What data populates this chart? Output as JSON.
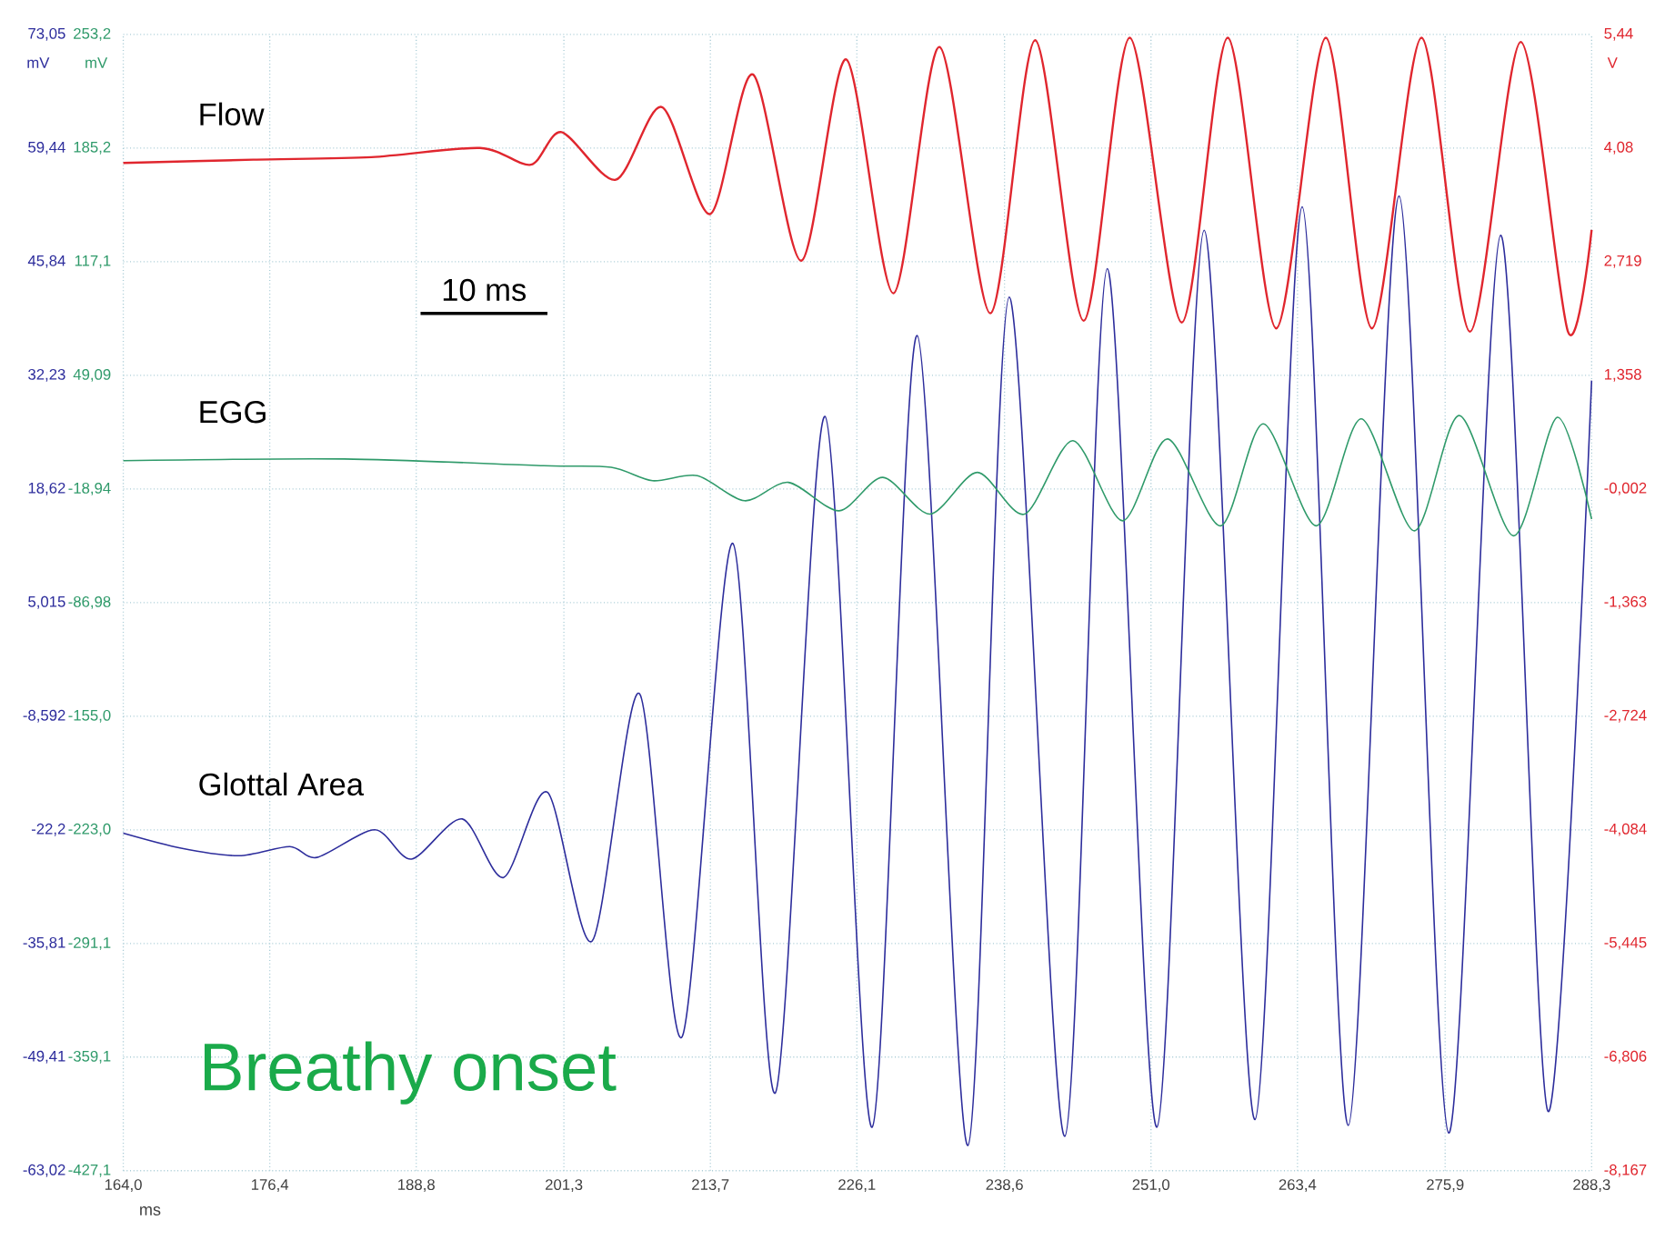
{
  "chart_data": {
    "type": "line",
    "grid": true,
    "xlabel": "ms",
    "ylabel": "mV",
    "y3label": "mV",
    "y2label": "V",
    "annotations": [
      "10 ms",
      "Breathy onset"
    ],
    "xlim": [
      164.0,
      288.3
    ],
    "xticks": [
      {
        "value": 164.0,
        "label": "164,0"
      },
      {
        "value": 176.4,
        "label": "176,4"
      },
      {
        "value": 188.8,
        "label": "188,8"
      },
      {
        "value": 201.3,
        "label": "201,3"
      },
      {
        "value": 213.7,
        "label": "213,7"
      },
      {
        "value": 226.1,
        "label": "226,1"
      },
      {
        "value": 238.6,
        "label": "238,6"
      },
      {
        "value": 251.0,
        "label": "251,0"
      },
      {
        "value": 263.4,
        "label": "263,4"
      },
      {
        "value": 275.9,
        "label": "275,9"
      },
      {
        "value": 288.3,
        "label": "288,3"
      }
    ],
    "ylim": [
      -63.02,
      73.05
    ],
    "yticks": [
      {
        "value": -63.02,
        "label": "-63,02"
      },
      {
        "value": -49.41,
        "label": "-49,41"
      },
      {
        "value": -35.81,
        "label": "-35,81"
      },
      {
        "value": -22.2,
        "label": "-22,2"
      },
      {
        "value": -8.592,
        "label": "-8,592"
      },
      {
        "value": 5.015,
        "label": "5,015"
      },
      {
        "value": 18.62,
        "label": "18,62"
      },
      {
        "value": 32.23,
        "label": "32,23"
      },
      {
        "value": 45.84,
        "label": "45,84"
      },
      {
        "value": 59.44,
        "label": "59,44"
      },
      {
        "value": 73.05,
        "label": "73,05"
      }
    ],
    "y3lim": [
      -427.1,
      253.2
    ],
    "y3ticks": [
      {
        "value": -427.1,
        "label": "-427,1"
      },
      {
        "value": -359.1,
        "label": "-359,1"
      },
      {
        "value": -291.1,
        "label": "-291,1"
      },
      {
        "value": -223.0,
        "label": "-223,0"
      },
      {
        "value": -155.0,
        "label": "-155,0"
      },
      {
        "value": -86.98,
        "label": "-86,98"
      },
      {
        "value": -18.94,
        "label": "-18,94"
      },
      {
        "value": 49.09,
        "label": "49,09"
      },
      {
        "value": 117.1,
        "label": "117,1"
      },
      {
        "value": 185.2,
        "label": "185,2"
      },
      {
        "value": 253.2,
        "label": "253,2"
      }
    ],
    "y2lim": [
      -8.167,
      5.44
    ],
    "y2ticks": [
      {
        "value": -8.167,
        "label": "-8,167"
      },
      {
        "value": -6.806,
        "label": "-6,806"
      },
      {
        "value": -5.445,
        "label": "-5,445"
      },
      {
        "value": -4.084,
        "label": "-4,084"
      },
      {
        "value": -2.724,
        "label": "-2,724"
      },
      {
        "value": -1.363,
        "label": "-1,363"
      },
      {
        "value": -0.002,
        "label": "-0,002"
      },
      {
        "value": 1.358,
        "label": "1,358"
      },
      {
        "value": 2.719,
        "label": "2,719"
      },
      {
        "value": 4.08,
        "label": "4,08"
      },
      {
        "value": 5.44,
        "label": "5,44"
      }
    ],
    "series": [
      {
        "name": "Flow",
        "color": "#e0262e",
        "axis": "y2",
        "x": [
          164.0,
          175.0,
          185.0,
          194.2,
          198.5,
          201.1,
          205.7,
          209.6,
          213.7,
          217.3,
          221.4,
          225.2,
          229.2,
          233.1,
          237.4,
          241.2,
          245.3,
          249.2,
          253.6,
          257.5,
          261.6,
          265.8,
          269.7,
          273.9,
          278.0,
          282.3,
          286.3,
          288.3
        ],
        "values": [
          3.9,
          3.94,
          3.97,
          4.08,
          3.88,
          4.27,
          3.7,
          4.57,
          3.29,
          4.96,
          2.73,
          5.14,
          2.34,
          5.29,
          2.1,
          5.37,
          2.01,
          5.4,
          1.99,
          5.4,
          1.92,
          5.4,
          1.92,
          5.4,
          1.88,
          5.35,
          1.88,
          3.1
        ]
      },
      {
        "name": "EGG",
        "color": "#2f9a6a",
        "axis": "y3",
        "x": [
          164.0,
          182.7,
          199.6,
          205.3,
          208.8,
          212.6,
          216.6,
          220.3,
          224.6,
          228.3,
          232.3,
          236.3,
          240.3,
          244.4,
          248.6,
          252.4,
          256.9,
          260.5,
          265.0,
          268.8,
          273.3,
          277.1,
          281.7,
          285.4,
          288.3
        ],
        "values": [
          -2,
          -1,
          -5,
          -6,
          -14,
          -11,
          -26,
          -15,
          -32,
          -12,
          -34,
          -9,
          -34,
          10,
          -38,
          11,
          -41,
          20,
          -41,
          23,
          -44,
          25,
          -47,
          24,
          -37
        ]
      },
      {
        "name": "Glottal Area",
        "color": "#2d2d9c",
        "axis": "y",
        "x": [
          164.0,
          168.9,
          173.8,
          178.1,
          180.4,
          185.3,
          188.4,
          192.7,
          196.2,
          199.9,
          203.7,
          207.7,
          211.3,
          215.6,
          219.2,
          223.4,
          227.4,
          231.2,
          235.5,
          239.0,
          243.7,
          247.3,
          251.5,
          255.5,
          259.8,
          263.8,
          267.7,
          272.0,
          276.2,
          280.6,
          284.6,
          288.3
        ],
        "values": [
          -22.6,
          -24.4,
          -25.3,
          -24.2,
          -25.5,
          -22.2,
          -25.7,
          -20.9,
          -27.9,
          -17.7,
          -35.5,
          -5.9,
          -47.0,
          12.1,
          -53.7,
          27.3,
          -57.8,
          37.0,
          -60.0,
          41.6,
          -58.9,
          45.0,
          -57.8,
          49.6,
          -56.9,
          52.4,
          -57.6,
          53.7,
          -58.5,
          49.0,
          -55.9,
          31.6
        ]
      }
    ]
  }
}
